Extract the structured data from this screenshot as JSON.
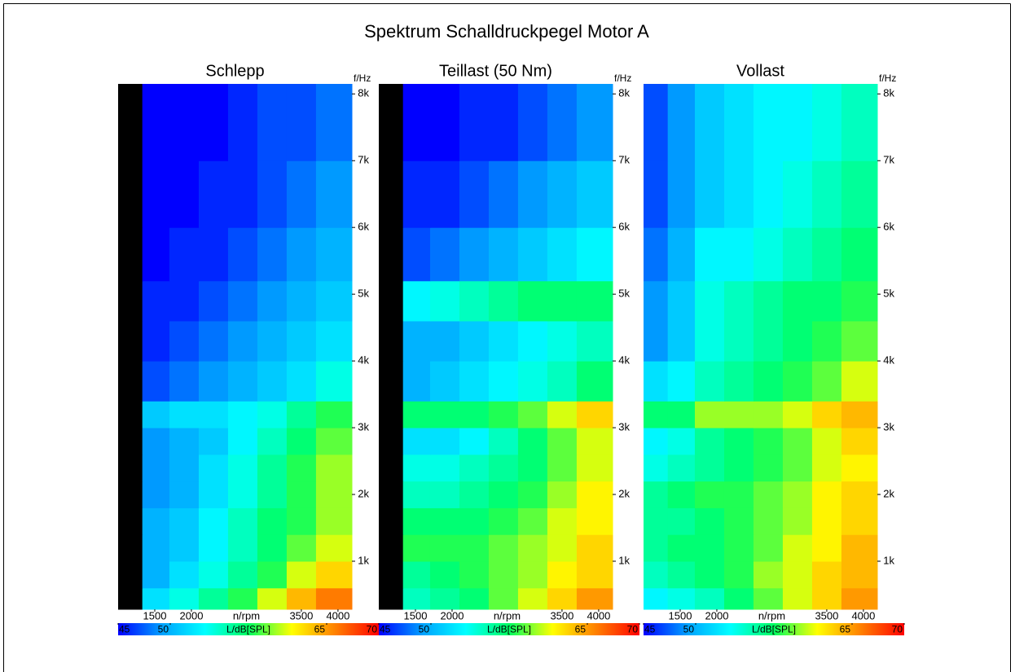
{
  "title": "Spektrum Schalldruckpegel Motor A",
  "chart_data": [
    {
      "type": "heatmap",
      "title": "Schlepp",
      "xlabel": "n/rpm",
      "ylabel": "f/Hz",
      "xlim": [
        1000,
        4190
      ],
      "ylim": [
        280,
        8150
      ],
      "xticks": [
        1500,
        2000,
        3500,
        4000
      ],
      "yticks": [
        {
          "value": 1000,
          "label": "1k"
        },
        {
          "value": 2000,
          "label": "2k"
        },
        {
          "value": 3000,
          "label": "3k"
        },
        {
          "value": 4000,
          "label": "4k"
        },
        {
          "value": 5000,
          "label": "5k"
        },
        {
          "value": 6000,
          "label": "6k"
        },
        {
          "value": 7000,
          "label": "7k"
        },
        {
          "value": 8000,
          "label": "8k"
        }
      ],
      "x_edges": [
        1000,
        1330,
        1700,
        2100,
        2500,
        2900,
        3300,
        3700,
        4190
      ],
      "y_edges": [
        280,
        600,
        1000,
        1400,
        1800,
        2200,
        2600,
        3000,
        3400,
        4000,
        4600,
        5200,
        6000,
        7000,
        8150
      ],
      "values": [
        [
          null,
          52,
          54,
          56,
          58,
          61,
          64,
          66
        ],
        [
          null,
          50,
          52,
          54,
          56,
          58,
          61,
          63
        ],
        [
          null,
          50,
          51,
          53,
          55,
          57,
          59,
          61
        ],
        [
          null,
          50,
          51,
          53,
          55,
          57,
          58,
          60
        ],
        [
          null,
          49,
          50,
          52,
          54,
          56,
          58,
          60
        ],
        [
          null,
          49,
          50,
          52,
          54,
          56,
          58,
          60
        ],
        [
          null,
          49,
          50,
          51,
          53,
          55,
          57,
          59
        ],
        [
          null,
          51,
          52,
          52,
          53,
          54,
          56,
          58
        ],
        [
          null,
          47,
          48,
          49,
          50,
          51,
          52,
          54
        ],
        [
          null,
          46,
          47,
          48,
          49,
          50,
          51,
          52
        ],
        [
          null,
          46,
          46,
          47,
          48,
          49,
          50,
          51
        ],
        [
          null,
          45,
          46,
          46,
          47,
          48,
          49,
          50
        ],
        [
          null,
          45,
          45,
          46,
          46,
          47,
          48,
          49
        ],
        [
          null,
          45,
          45,
          45,
          46,
          47,
          47,
          48
        ]
      ],
      "null_color": "#000000",
      "colorbar": {
        "label": "L/dB[SPL]",
        "clim": [
          45,
          70
        ],
        "ticks": [
          45,
          50,
          65,
          70
        ],
        "colormap": [
          "#0000ff",
          "#00a0ff",
          "#00ffff",
          "#00ff60",
          "#ffff00",
          "#ff8000",
          "#ff0000"
        ]
      }
    },
    {
      "type": "heatmap",
      "title": "Teillast (50 Nm)",
      "xlabel": "n/rpm",
      "ylabel": "f/Hz",
      "xlim": [
        1000,
        4190
      ],
      "ylim": [
        280,
        8150
      ],
      "xticks": [
        1500,
        2000,
        3500,
        4000
      ],
      "yticks": [
        {
          "value": 1000,
          "label": "1k"
        },
        {
          "value": 2000,
          "label": "2k"
        },
        {
          "value": 3000,
          "label": "3k"
        },
        {
          "value": 4000,
          "label": "4k"
        },
        {
          "value": 5000,
          "label": "5k"
        },
        {
          "value": 6000,
          "label": "6k"
        },
        {
          "value": 7000,
          "label": "7k"
        },
        {
          "value": 8000,
          "label": "8k"
        }
      ],
      "x_edges": [
        1000,
        1330,
        1700,
        2100,
        2500,
        2900,
        3300,
        3700,
        4190
      ],
      "y_edges": [
        280,
        600,
        1000,
        1400,
        1800,
        2200,
        2600,
        3000,
        3400,
        4000,
        4600,
        5200,
        6000,
        7000,
        8150
      ],
      "values": [
        [
          null,
          55,
          56,
          57,
          59,
          61,
          63,
          65
        ],
        [
          null,
          56,
          57,
          58,
          59,
          60,
          62,
          63
        ],
        [
          null,
          58,
          58,
          58,
          59,
          60,
          61,
          63
        ],
        [
          null,
          57,
          57,
          57,
          58,
          59,
          61,
          62
        ],
        [
          null,
          55,
          55,
          56,
          57,
          58,
          60,
          62
        ],
        [
          null,
          54,
          54,
          55,
          56,
          57,
          59,
          61
        ],
        [
          null,
          52,
          52,
          53,
          55,
          57,
          59,
          61
        ],
        [
          null,
          57,
          57,
          57,
          58,
          59,
          61,
          63
        ],
        [
          null,
          50,
          51,
          52,
          53,
          54,
          55,
          57
        ],
        [
          null,
          50,
          50,
          51,
          52,
          53,
          54,
          55
        ],
        [
          null,
          53,
          54,
          55,
          56,
          57,
          57,
          57
        ],
        [
          null,
          47,
          48,
          49,
          50,
          51,
          52,
          53
        ],
        [
          null,
          46,
          46,
          47,
          48,
          49,
          50,
          51
        ],
        [
          null,
          45,
          45,
          46,
          46,
          47,
          48,
          49
        ]
      ],
      "null_color": "#000000",
      "colorbar": {
        "label": "L/dB[SPL]",
        "clim": [
          45,
          70
        ],
        "ticks": [
          45,
          50,
          65,
          70
        ],
        "colormap": [
          "#0000ff",
          "#00a0ff",
          "#00ffff",
          "#00ff60",
          "#ffff00",
          "#ff8000",
          "#ff0000"
        ]
      }
    },
    {
      "type": "heatmap",
      "title": "Vollast",
      "xlabel": "n/rpm",
      "ylabel": "f/Hz",
      "xlim": [
        1000,
        4190
      ],
      "ylim": [
        280,
        8150
      ],
      "xticks": [
        1500,
        2000,
        3500,
        4000
      ],
      "yticks": [
        {
          "value": 1000,
          "label": "1k"
        },
        {
          "value": 2000,
          "label": "2k"
        },
        {
          "value": 3000,
          "label": "3k"
        },
        {
          "value": 4000,
          "label": "4k"
        },
        {
          "value": 5000,
          "label": "5k"
        },
        {
          "value": 6000,
          "label": "6k"
        },
        {
          "value": 7000,
          "label": "7k"
        },
        {
          "value": 8000,
          "label": "8k"
        }
      ],
      "x_edges": [
        1000,
        1330,
        1700,
        2100,
        2500,
        2900,
        3300,
        3700,
        4190
      ],
      "y_edges": [
        280,
        600,
        1000,
        1400,
        1800,
        2200,
        2600,
        3000,
        3400,
        4000,
        4600,
        5200,
        6000,
        7000,
        8150
      ],
      "values": [
        [
          53,
          54,
          55,
          57,
          59,
          61,
          63,
          65
        ],
        [
          55,
          56,
          57,
          58,
          60,
          61,
          63,
          64
        ],
        [
          56,
          57,
          57,
          58,
          59,
          61,
          62,
          64
        ],
        [
          56,
          56,
          57,
          58,
          59,
          60,
          62,
          63
        ],
        [
          56,
          57,
          58,
          58,
          59,
          60,
          62,
          63
        ],
        [
          54,
          55,
          56,
          57,
          58,
          59,
          61,
          62
        ],
        [
          53,
          54,
          56,
          57,
          58,
          59,
          61,
          63
        ],
        [
          57,
          57,
          60,
          60,
          60,
          61,
          63,
          64
        ],
        [
          52,
          53,
          55,
          56,
          57,
          58,
          59,
          61
        ],
        [
          49,
          51,
          54,
          55,
          56,
          57,
          58,
          59
        ],
        [
          49,
          51,
          54,
          55,
          56,
          57,
          57,
          58
        ],
        [
          48,
          50,
          53,
          53,
          54,
          55,
          56,
          57
        ],
        [
          47,
          49,
          51,
          52,
          53,
          54,
          55,
          56
        ],
        [
          47,
          49,
          51,
          52,
          53,
          53,
          54,
          55
        ]
      ],
      "null_color": "#000000",
      "colorbar": {
        "label": "L/dB[SPL]",
        "clim": [
          45,
          70
        ],
        "ticks": [
          45,
          50,
          65,
          70
        ],
        "colormap": [
          "#0000ff",
          "#00a0ff",
          "#00ffff",
          "#00ff60",
          "#ffff00",
          "#ff8000",
          "#ff0000"
        ]
      }
    }
  ]
}
